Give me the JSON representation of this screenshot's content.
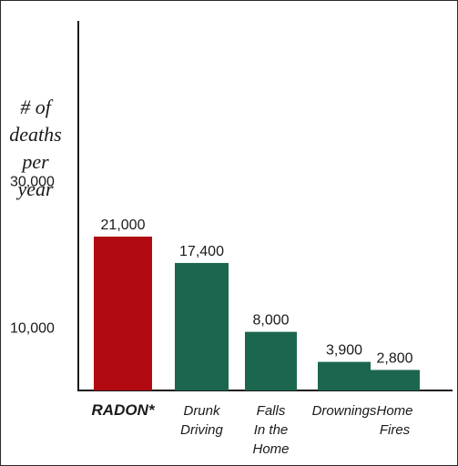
{
  "chart_data": {
    "type": "bar",
    "title": "",
    "xlabel": "",
    "ylabel": [
      "# of",
      "deaths",
      "per",
      "year"
    ],
    "ylim": [
      0,
      30000
    ],
    "yticks": [
      {
        "value": 30000,
        "label": "30,000"
      },
      {
        "value": 10000,
        "label": "10,000"
      }
    ],
    "categories": [
      {
        "label": [
          "RADON*"
        ],
        "emphasis": true
      },
      {
        "label": [
          "Drunk",
          "Driving"
        ],
        "emphasis": false
      },
      {
        "label": [
          "Falls",
          "In the",
          "Home"
        ],
        "emphasis": false
      },
      {
        "label": [
          "Drownings"
        ],
        "emphasis": false
      },
      {
        "label": [
          "Home",
          "Fires"
        ],
        "emphasis": false
      }
    ],
    "values": [
      21000,
      17400,
      8000,
      3900,
      2800
    ],
    "value_labels": [
      "21,000",
      "17,400",
      "8,000",
      "3,900",
      "2,800"
    ],
    "colors": [
      "#b10a12",
      "#1c6650",
      "#1c6650",
      "#1c6650",
      "#1c6650"
    ],
    "grid": false,
    "legend": "none"
  }
}
